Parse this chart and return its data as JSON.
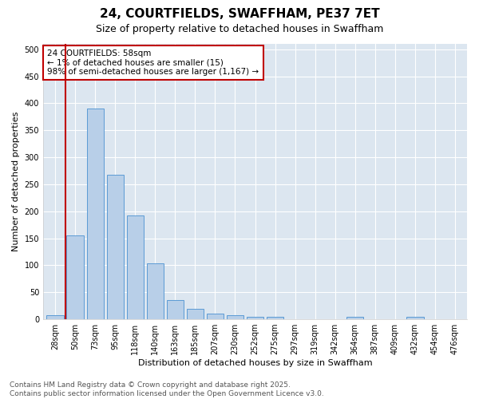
{
  "title_line1": "24, COURTFIELDS, SWAFFHAM, PE37 7ET",
  "title_line2": "Size of property relative to detached houses in Swaffham",
  "xlabel": "Distribution of detached houses by size in Swaffham",
  "ylabel": "Number of detached properties",
  "categories": [
    "28sqm",
    "50sqm",
    "73sqm",
    "95sqm",
    "118sqm",
    "140sqm",
    "163sqm",
    "185sqm",
    "207sqm",
    "230sqm",
    "252sqm",
    "275sqm",
    "297sqm",
    "319sqm",
    "342sqm",
    "364sqm",
    "387sqm",
    "409sqm",
    "432sqm",
    "454sqm",
    "476sqm"
  ],
  "values": [
    7,
    155,
    390,
    268,
    192,
    103,
    35,
    20,
    10,
    8,
    5,
    4,
    0,
    0,
    0,
    4,
    0,
    0,
    5,
    0,
    0
  ],
  "bar_color": "#b8cfe8",
  "bar_edge_color": "#5b9bd5",
  "vline_x": 0.5,
  "vline_color": "#c00000",
  "annotation_text": "24 COURTFIELDS: 58sqm\n← 1% of detached houses are smaller (15)\n98% of semi-detached houses are larger (1,167) →",
  "annotation_box_color": "#c00000",
  "ylim": [
    0,
    510
  ],
  "yticks": [
    0,
    50,
    100,
    150,
    200,
    250,
    300,
    350,
    400,
    450,
    500
  ],
  "plot_bg_color": "#dce6f0",
  "fig_bg_color": "#ffffff",
  "grid_color": "#ffffff",
  "footer_line1": "Contains HM Land Registry data © Crown copyright and database right 2025.",
  "footer_line2": "Contains public sector information licensed under the Open Government Licence v3.0.",
  "title_fontsize": 11,
  "subtitle_fontsize": 9,
  "axis_label_fontsize": 8,
  "tick_fontsize": 7,
  "annotation_fontsize": 7.5,
  "footer_fontsize": 6.5
}
